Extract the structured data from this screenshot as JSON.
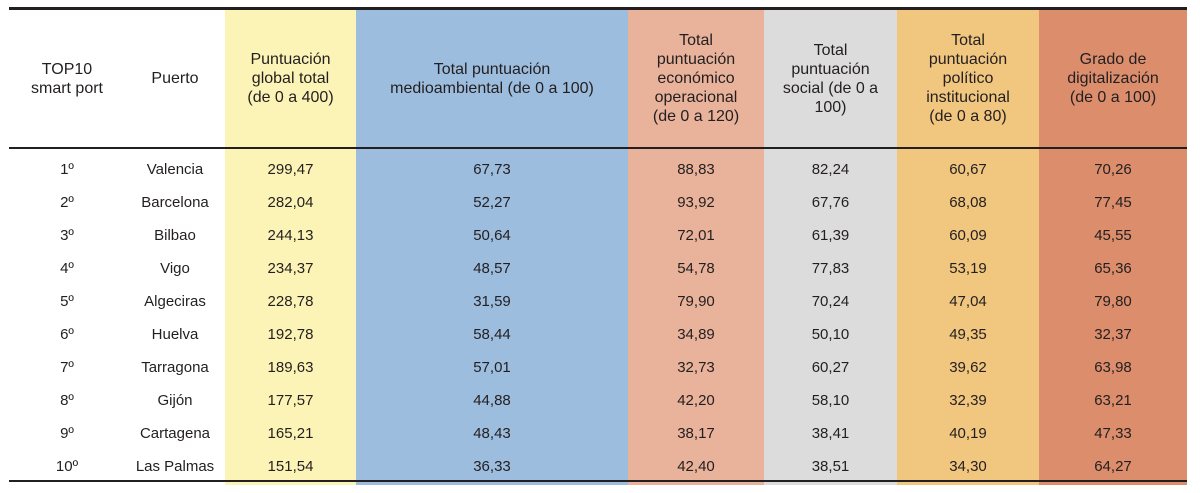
{
  "table": {
    "headers": {
      "rank_line1": "TOP10",
      "rank_line2": "smart port",
      "port": "Puerto",
      "global_line1": "Puntuación",
      "global_line2": "global total",
      "global_line3": "(de 0 a 400)",
      "env_line1": "Total puntuación",
      "env_line2": "medioambiental (de 0 a 100)",
      "econ_line1": "Total",
      "econ_line2": "puntuación",
      "econ_line3": "económico",
      "econ_line4": "operacional",
      "econ_line5": "(de 0 a 120)",
      "social_line1": "Total",
      "social_line2": "puntuación",
      "social_line3": "social (de 0 a",
      "social_line4": "100)",
      "pol_line1": "Total",
      "pol_line2": "puntuación",
      "pol_line3": "político",
      "pol_line4": "institucional",
      "pol_line5": "(de 0 a 80)",
      "dig_line1": "Grado de",
      "dig_line2": "digitalización",
      "dig_line3": "(de 0 a 100)"
    },
    "rows": [
      {
        "rank": "1º",
        "port": "Valencia",
        "global": "299,47",
        "env": "67,73",
        "econ": "88,83",
        "social": "82,24",
        "pol": "60,67",
        "dig": "70,26"
      },
      {
        "rank": "2º",
        "port": "Barcelona",
        "global": "282,04",
        "env": "52,27",
        "econ": "93,92",
        "social": "67,76",
        "pol": "68,08",
        "dig": "77,45"
      },
      {
        "rank": "3º",
        "port": "Bilbao",
        "global": "244,13",
        "env": "50,64",
        "econ": "72,01",
        "social": "61,39",
        "pol": "60,09",
        "dig": "45,55"
      },
      {
        "rank": "4º",
        "port": "Vigo",
        "global": "234,37",
        "env": "48,57",
        "econ": "54,78",
        "social": "77,83",
        "pol": "53,19",
        "dig": "65,36"
      },
      {
        "rank": "5º",
        "port": "Algeciras",
        "global": "228,78",
        "env": "31,59",
        "econ": "79,90",
        "social": "70,24",
        "pol": "47,04",
        "dig": "79,80"
      },
      {
        "rank": "6º",
        "port": "Huelva",
        "global": "192,78",
        "env": "58,44",
        "econ": "34,89",
        "social": "50,10",
        "pol": "49,35",
        "dig": "32,37"
      },
      {
        "rank": "7º",
        "port": "Tarragona",
        "global": "189,63",
        "env": "57,01",
        "econ": "32,73",
        "social": "60,27",
        "pol": "39,62",
        "dig": "63,98"
      },
      {
        "rank": "8º",
        "port": "Gijón",
        "global": "177,57",
        "env": "44,88",
        "econ": "42,20",
        "social": "58,10",
        "pol": "32,39",
        "dig": "63,21"
      },
      {
        "rank": "9º",
        "port": "Cartagena",
        "global": "165,21",
        "env": "48,43",
        "econ": "38,17",
        "social": "38,41",
        "pol": "40,19",
        "dig": "47,33"
      },
      {
        "rank": "10º",
        "port": "Las Palmas",
        "global": "151,54",
        "env": "36,33",
        "econ": "42,40",
        "social": "38,51",
        "pol": "34,30",
        "dig": "64,27"
      }
    ],
    "colors": {
      "global": "#fcf4b6",
      "env": "#9dbddf",
      "econ": "#e9b29a",
      "social": "#dcdcdc",
      "pol": "#f1c67f",
      "dig": "#db8d6c"
    }
  }
}
